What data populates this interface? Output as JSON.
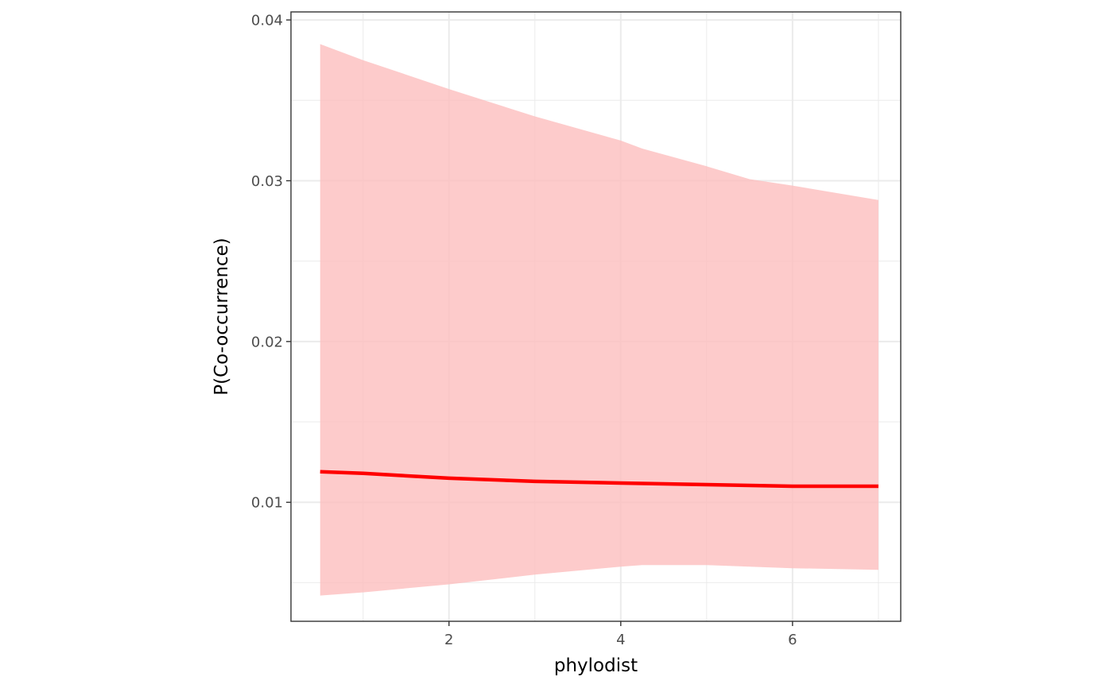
{
  "chart_data": {
    "type": "line",
    "xlabel": "phylodist",
    "ylabel": "P(Co-occurrence)",
    "xlim": [
      0.16,
      7.26
    ],
    "ylim": [
      0.0026,
      0.0405
    ],
    "x_ticks": [
      2,
      4,
      6
    ],
    "x_tick_labels": [
      "2",
      "4",
      "6"
    ],
    "x_minor": [
      1,
      3,
      5,
      7
    ],
    "y_ticks": [
      0.01,
      0.02,
      0.03,
      0.04
    ],
    "y_tick_labels": [
      "0.01",
      "0.02",
      "0.03",
      "0.04"
    ],
    "y_minor": [
      0.005,
      0.015,
      0.025,
      0.035
    ],
    "grid": true,
    "legend": "none",
    "series": [
      {
        "kind": "line",
        "color": "#ff0000",
        "x": [
          0.5,
          1,
          2,
          3,
          4,
          5,
          6,
          7
        ],
        "y": [
          0.0119,
          0.0118,
          0.0115,
          0.0113,
          0.0112,
          0.0111,
          0.011,
          0.011
        ]
      },
      {
        "kind": "ribbon",
        "color": "#fcbcbc",
        "x": [
          0.5,
          1,
          2,
          3,
          4,
          4.25,
          5,
          5.5,
          6,
          7
        ],
        "lower": [
          0.0042,
          0.0044,
          0.0049,
          0.0055,
          0.006,
          0.0061,
          0.0061,
          0.006,
          0.0059,
          0.0058
        ],
        "upper": [
          0.0385,
          0.0375,
          0.0357,
          0.034,
          0.0325,
          0.032,
          0.0309,
          0.0301,
          0.0297,
          0.0288
        ]
      }
    ]
  }
}
